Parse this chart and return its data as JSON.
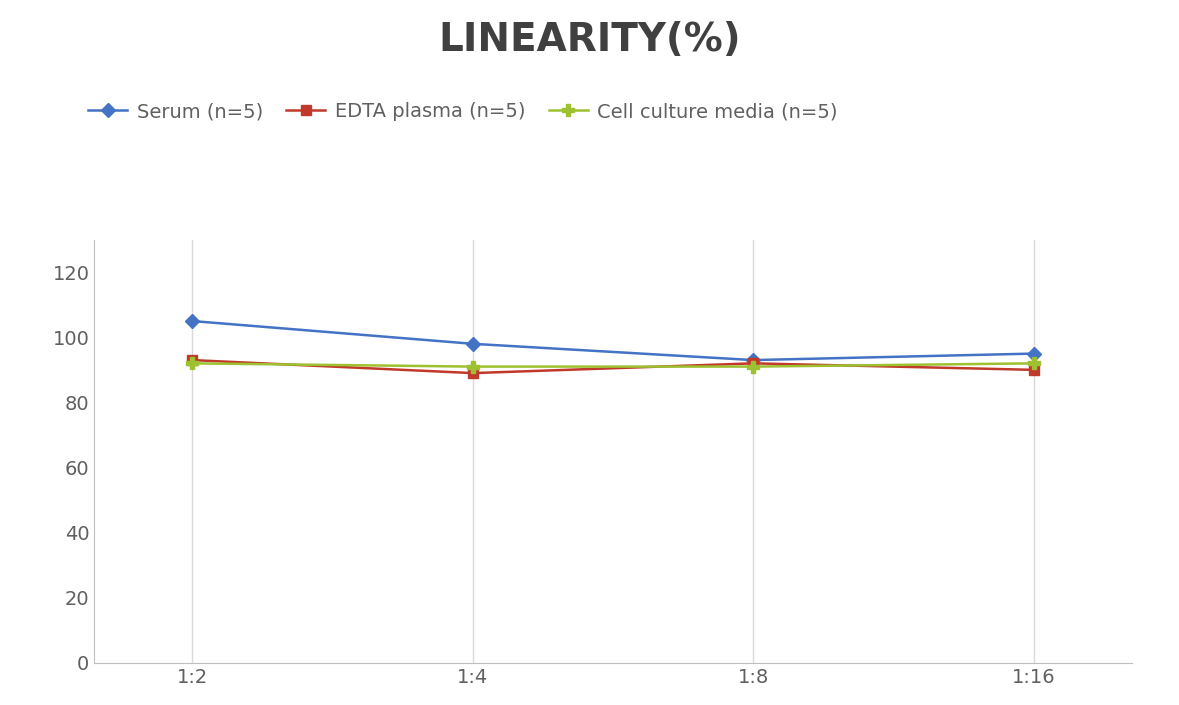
{
  "title": "LINEARITY(%)",
  "title_fontsize": 28,
  "title_fontweight": "bold",
  "title_color": "#404040",
  "x_labels": [
    "1:2",
    "1:4",
    "1:8",
    "1:16"
  ],
  "x_values": [
    0,
    1,
    2,
    3
  ],
  "series": [
    {
      "label": "Serum (n=5)",
      "values": [
        105,
        98,
        93,
        95
      ],
      "color": "#4472C4",
      "marker": "D",
      "markersize": 7,
      "linewidth": 1.8
    },
    {
      "label": "EDTA plasma (n=5)",
      "values": [
        93,
        89,
        92,
        90
      ],
      "color": "#C0392B",
      "marker": "s",
      "markersize": 7,
      "linewidth": 1.8
    },
    {
      "label": "Cell culture media (n=5)",
      "values": [
        92,
        91,
        91,
        92
      ],
      "color": "#9DC131",
      "marker": "P",
      "markersize": 8,
      "linewidth": 1.8
    }
  ],
  "ylim": [
    0,
    130
  ],
  "yticks": [
    0,
    20,
    40,
    60,
    80,
    100,
    120
  ],
  "grid_color": "#D9D9D9",
  "background_color": "#FFFFFF",
  "legend_fontsize": 14,
  "tick_fontsize": 14,
  "tick_color": "#606060",
  "spine_color": "#BFBFBF"
}
